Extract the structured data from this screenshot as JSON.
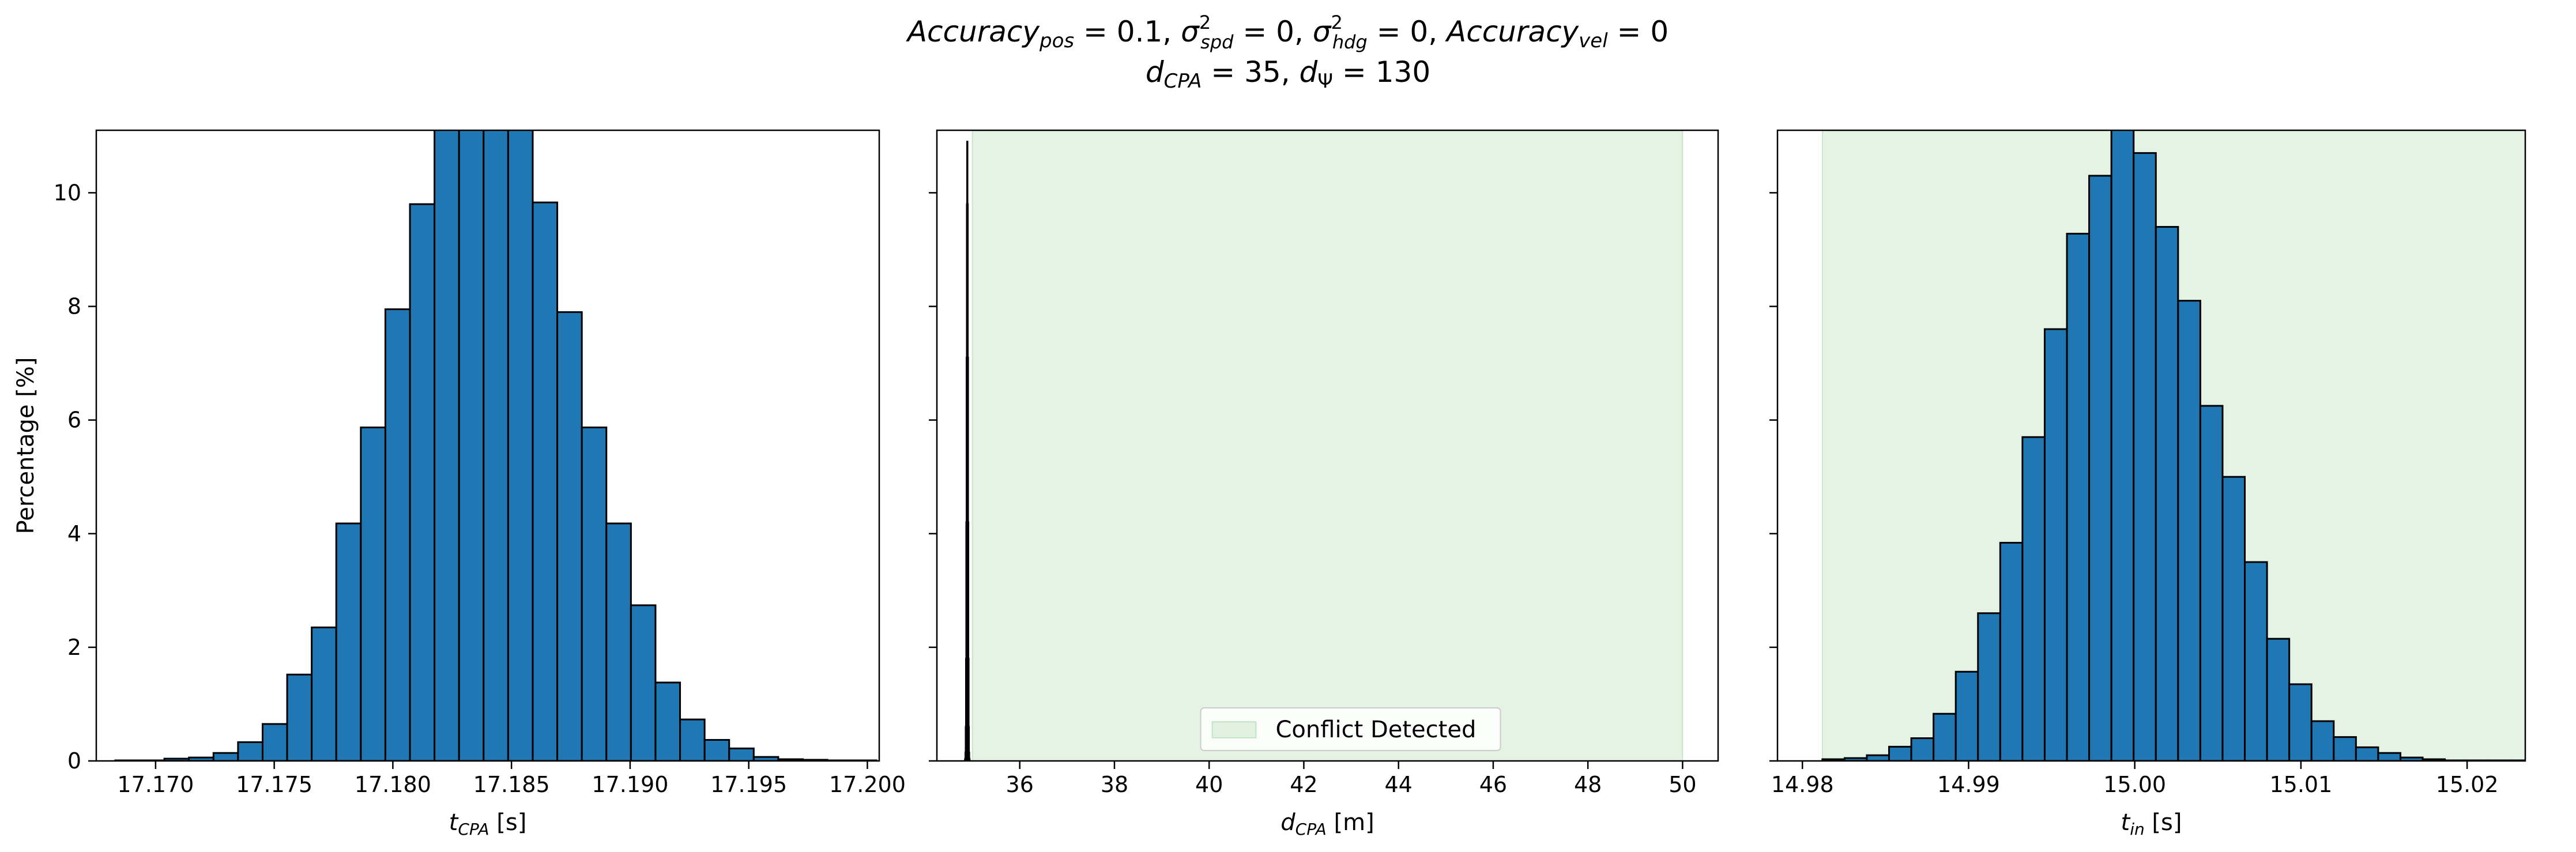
{
  "figure": {
    "title_line1": "Accuracy_pos = 0.1, σ²_spd = 0, σ²_hdg = 0, Accuracy_vel = 0",
    "title_line2": "d_CPA = 35, d_Ψ = 130"
  },
  "chart_data": [
    {
      "type": "bar",
      "name": "t-cpa-histogram",
      "xlabel": "t_CPA [s]",
      "ylabel": "Percentage [%]",
      "xlim": [
        17.1675,
        17.2005
      ],
      "ylim": [
        0,
        11.1
      ],
      "xticks": [
        17.17,
        17.175,
        17.18,
        17.185,
        17.19,
        17.195,
        17.2
      ],
      "xtick_labels": [
        "17.170",
        "17.175",
        "17.180",
        "17.185",
        "17.190",
        "17.195",
        "17.200"
      ],
      "yticks": [
        0,
        2,
        4,
        6,
        8,
        10
      ],
      "ytick_labels": [
        "0",
        "2",
        "4",
        "6",
        "8",
        "10"
      ],
      "bin_start": 17.1683,
      "bin_width": 0.001035,
      "values": [
        0.01,
        0.01,
        0.04,
        0.06,
        0.14,
        0.33,
        0.65,
        1.52,
        2.35,
        4.18,
        5.87,
        7.95,
        9.8,
        11.5,
        13.0,
        13.2,
        11.4,
        9.83,
        7.9,
        5.87,
        4.18,
        2.74,
        1.38,
        0.73,
        0.37,
        0.22,
        0.07,
        0.03,
        0.02,
        0.01,
        0.01
      ],
      "bar_color": "#1f77b4",
      "edge_color": "#000000"
    },
    {
      "type": "bar",
      "name": "d-cpa-histogram",
      "xlabel": "d_CPA [m]",
      "ylabel": "",
      "xlim": [
        34.25,
        50.75
      ],
      "ylim": [
        0,
        11.1
      ],
      "xticks": [
        36,
        38,
        40,
        42,
        44,
        46,
        48,
        50
      ],
      "xtick_labels": [
        "36",
        "38",
        "40",
        "42",
        "44",
        "46",
        "48",
        "50"
      ],
      "yticks": [
        0,
        2,
        4,
        6,
        8,
        10
      ],
      "ytick_labels": [
        "",
        "",
        "",
        "",
        "",
        ""
      ],
      "bin_start": 34.84,
      "bin_width": 0.0062,
      "values": [
        0.01,
        0.04,
        0.15,
        0.6,
        1.8,
        4.2,
        7.1,
        9.8,
        10.9,
        9.8,
        7.1,
        4.2,
        1.8,
        0.6,
        0.15,
        0.04,
        0.01
      ],
      "bar_color": "#1f77b4",
      "edge_color": "#000000",
      "shaded_region": {
        "x0": 35.0,
        "x1": 50.0,
        "color": "#2ca02c",
        "opacity": 0.12
      },
      "legend": {
        "label": "Conflict Detected",
        "placement": "lower-center"
      }
    },
    {
      "type": "bar",
      "name": "t-in-histogram",
      "xlabel": "t_in [s]",
      "ylabel": "",
      "xlim": [
        14.9785,
        15.0235
      ],
      "ylim": [
        0,
        11.1
      ],
      "xticks": [
        14.98,
        14.99,
        15.0,
        15.01,
        15.02
      ],
      "xtick_labels": [
        "14.98",
        "14.99",
        "15.00",
        "15.01",
        "15.02"
      ],
      "yticks": [
        0,
        2,
        4,
        6,
        8,
        10
      ],
      "ytick_labels": [
        "",
        "",
        "",
        "",
        "",
        ""
      ],
      "bin_start": 14.9812,
      "bin_width": 0.001338,
      "values": [
        0.03,
        0.05,
        0.1,
        0.25,
        0.4,
        0.83,
        1.57,
        2.6,
        3.84,
        5.7,
        7.6,
        9.28,
        10.3,
        11.2,
        10.7,
        9.4,
        8.1,
        6.25,
        5.0,
        3.5,
        2.15,
        1.35,
        0.7,
        0.42,
        0.24,
        0.14,
        0.06,
        0.03,
        0.01,
        0.01,
        0.01,
        0.01
      ],
      "bar_color": "#1f77b4",
      "edge_color": "#000000",
      "shaded_region": {
        "x0": 14.9812,
        "x1": 15.03,
        "color": "#2ca02c",
        "opacity": 0.12
      }
    }
  ]
}
